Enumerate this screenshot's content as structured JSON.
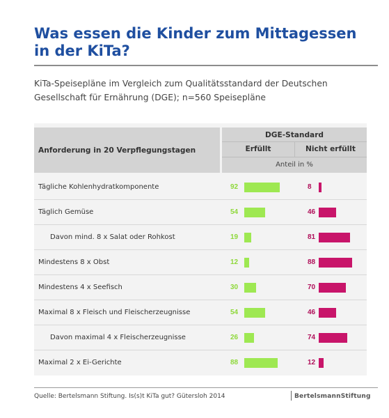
{
  "title": "Was essen die Kinder zum Mittagessen in der KiTa?",
  "subtitle": "KiTa-Speisepläne im Vergleich zum Qualitätsstandard der Deutschen Gesellschaft für Ernährung (DGE); n=560 Speisepläne",
  "table": {
    "col_requirement": "Anforderung in 20 Verpflegungstagen",
    "col_group": "DGE-Standard",
    "col_met": "Erfüllt",
    "col_not_met": "Nicht erfüllt",
    "unit": "Anteil in %"
  },
  "colors": {
    "met": "#9ee852",
    "not_met": "#c8156a",
    "title": "#1f4fa0"
  },
  "chart_data": {
    "type": "bar",
    "categories": [
      "Tägliche Kohlenhydratkomponente",
      "Täglich Gemüse",
      "Davon mind. 8 x Salat oder Rohkost",
      "Mindestens 8 x Obst",
      "Mindestens 4 x Seefisch",
      "Maximal 8 x Fleisch und Fleischerzeugnisse",
      "Davon maximal 4 x Fleischerzeugnisse",
      "Maximal 2 x Ei-Gerichte"
    ],
    "indented": [
      false,
      false,
      true,
      false,
      false,
      false,
      true,
      false
    ],
    "series": [
      {
        "name": "Erfüllt",
        "values": [
          92,
          54,
          19,
          12,
          30,
          54,
          26,
          88
        ]
      },
      {
        "name": "Nicht erfüllt",
        "values": [
          8,
          46,
          81,
          88,
          70,
          46,
          74,
          12
        ]
      }
    ],
    "ylim": [
      0,
      100
    ]
  },
  "footer": {
    "source": "Quelle: Bertelsmann Stiftung. Is(s)t KiTa gut? Gütersloh 2014",
    "brand": "BertelsmannStiftung"
  }
}
